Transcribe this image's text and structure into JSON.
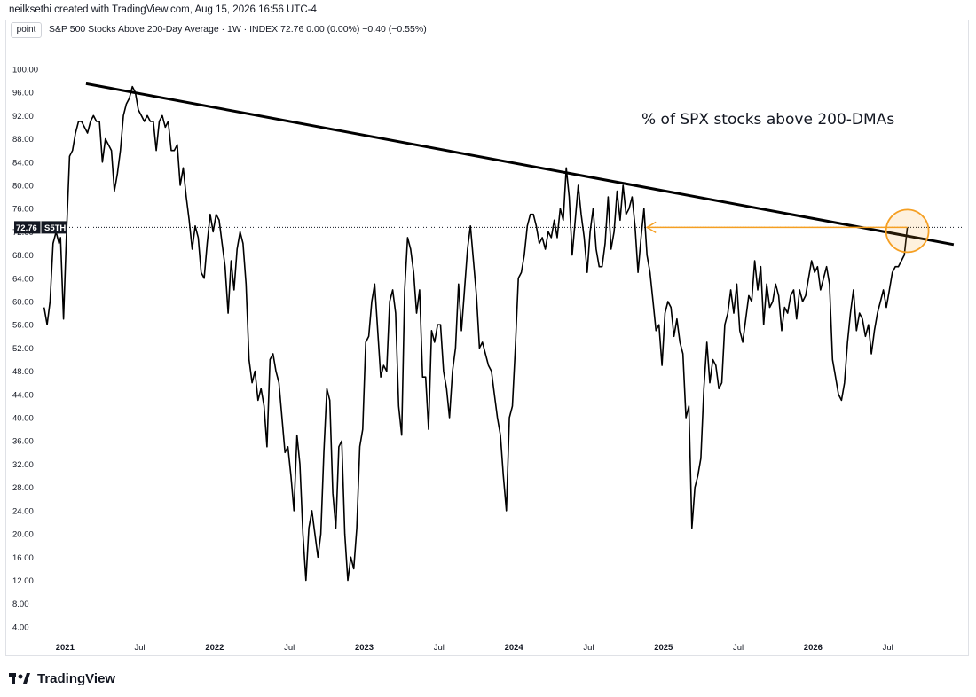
{
  "header": {
    "attribution": "neilksethi created with TradingView.com, Aug 15, 2026 16:56 UTC-4",
    "mode_button": "point",
    "legend": "S&P 500 Stocks Above 200-Day Average · 1W · INDEX  72.76  0.00 (0.00%)  −0.40 (−0.55%)"
  },
  "footer": {
    "brand": "TradingView"
  },
  "chart_data": {
    "type": "line",
    "annotation": "% of SPX stocks above 200-DMAs",
    "last_value_label": "72.76",
    "symbol_label": "S5TH",
    "y_ticks": [
      "100.00",
      "96.00",
      "92.00",
      "88.00",
      "84.00",
      "80.00",
      "76.00",
      "72.00",
      "68.00",
      "64.00",
      "60.00",
      "56.00",
      "52.00",
      "48.00",
      "44.00",
      "40.00",
      "36.00",
      "32.00",
      "28.00",
      "24.00",
      "20.00",
      "16.00",
      "12.00",
      "8.00",
      "4.00"
    ],
    "x_ticks": [
      {
        "label": "2021",
        "x": 2021.0
      },
      {
        "label": "Jul",
        "x": 2021.5
      },
      {
        "label": "2022",
        "x": 2022.0
      },
      {
        "label": "Jul",
        "x": 2022.5
      },
      {
        "label": "2023",
        "x": 2023.0
      },
      {
        "label": "Jul",
        "x": 2023.5
      },
      {
        "label": "2024",
        "x": 2024.0
      },
      {
        "label": "Jul",
        "x": 2024.5
      },
      {
        "label": "2025",
        "x": 2025.0
      },
      {
        "label": "Jul",
        "x": 2025.5
      },
      {
        "label": "2026",
        "x": 2026.0
      },
      {
        "label": "Jul",
        "x": 2026.5
      }
    ],
    "xlim": [
      2020.85,
      2027.0
    ],
    "ylim": [
      2.0,
      103.5
    ],
    "trendline": [
      {
        "x": 2021.14,
        "y": 97.5
      },
      {
        "x": 2026.94,
        "y": 69.8
      }
    ],
    "last_value": 72.76,
    "series": [
      {
        "values": [
          [
            2020.86,
            59
          ],
          [
            2020.88,
            56
          ],
          [
            2020.9,
            60
          ],
          [
            2020.92,
            70
          ],
          [
            2020.94,
            72
          ],
          [
            2020.96,
            70
          ],
          [
            2020.97,
            71
          ],
          [
            2020.99,
            57
          ],
          [
            2021.01,
            72
          ],
          [
            2021.03,
            85
          ],
          [
            2021.05,
            86
          ],
          [
            2021.07,
            89
          ],
          [
            2021.09,
            91
          ],
          [
            2021.11,
            91
          ],
          [
            2021.13,
            90
          ],
          [
            2021.15,
            89
          ],
          [
            2021.17,
            91
          ],
          [
            2021.19,
            92
          ],
          [
            2021.21,
            91
          ],
          [
            2021.23,
            91
          ],
          [
            2021.25,
            84
          ],
          [
            2021.27,
            88
          ],
          [
            2021.29,
            87
          ],
          [
            2021.31,
            86
          ],
          [
            2021.33,
            79
          ],
          [
            2021.35,
            82
          ],
          [
            2021.37,
            86
          ],
          [
            2021.39,
            92
          ],
          [
            2021.41,
            94
          ],
          [
            2021.43,
            95
          ],
          [
            2021.45,
            97
          ],
          [
            2021.47,
            96
          ],
          [
            2021.49,
            93
          ],
          [
            2021.51,
            92
          ],
          [
            2021.53,
            91
          ],
          [
            2021.55,
            92
          ],
          [
            2021.57,
            91
          ],
          [
            2021.59,
            91
          ],
          [
            2021.61,
            86
          ],
          [
            2021.63,
            91
          ],
          [
            2021.65,
            92
          ],
          [
            2021.67,
            90
          ],
          [
            2021.69,
            91
          ],
          [
            2021.71,
            86
          ],
          [
            2021.73,
            86
          ],
          [
            2021.75,
            87
          ],
          [
            2021.77,
            80
          ],
          [
            2021.79,
            83
          ],
          [
            2021.81,
            78
          ],
          [
            2021.83,
            74
          ],
          [
            2021.85,
            69
          ],
          [
            2021.87,
            73
          ],
          [
            2021.89,
            71
          ],
          [
            2021.91,
            65
          ],
          [
            2021.93,
            64
          ],
          [
            2021.95,
            70
          ],
          [
            2021.97,
            75
          ],
          [
            2021.99,
            72
          ],
          [
            2022.01,
            75
          ],
          [
            2022.03,
            74
          ],
          [
            2022.05,
            70
          ],
          [
            2022.07,
            66
          ],
          [
            2022.09,
            58
          ],
          [
            2022.11,
            67
          ],
          [
            2022.13,
            62
          ],
          [
            2022.15,
            69
          ],
          [
            2022.17,
            72
          ],
          [
            2022.19,
            70
          ],
          [
            2022.21,
            63
          ],
          [
            2022.23,
            50
          ],
          [
            2022.25,
            46
          ],
          [
            2022.27,
            48
          ],
          [
            2022.29,
            43
          ],
          [
            2022.31,
            45
          ],
          [
            2022.33,
            42
          ],
          [
            2022.35,
            35
          ],
          [
            2022.37,
            50
          ],
          [
            2022.39,
            51
          ],
          [
            2022.41,
            48
          ],
          [
            2022.43,
            46
          ],
          [
            2022.45,
            40
          ],
          [
            2022.47,
            34
          ],
          [
            2022.49,
            35
          ],
          [
            2022.51,
            30
          ],
          [
            2022.53,
            24
          ],
          [
            2022.55,
            37
          ],
          [
            2022.57,
            32
          ],
          [
            2022.59,
            20
          ],
          [
            2022.61,
            12
          ],
          [
            2022.63,
            21
          ],
          [
            2022.65,
            24
          ],
          [
            2022.67,
            20
          ],
          [
            2022.69,
            16
          ],
          [
            2022.71,
            20
          ],
          [
            2022.73,
            34
          ],
          [
            2022.75,
            45
          ],
          [
            2022.77,
            43
          ],
          [
            2022.79,
            27
          ],
          [
            2022.81,
            21
          ],
          [
            2022.83,
            35
          ],
          [
            2022.85,
            36
          ],
          [
            2022.87,
            20
          ],
          [
            2022.89,
            12
          ],
          [
            2022.91,
            16
          ],
          [
            2022.93,
            14
          ],
          [
            2022.95,
            21
          ],
          [
            2022.97,
            35
          ],
          [
            2022.99,
            38
          ],
          [
            2023.01,
            53
          ],
          [
            2023.03,
            54
          ],
          [
            2023.05,
            60
          ],
          [
            2023.07,
            63
          ],
          [
            2023.09,
            55
          ],
          [
            2023.11,
            47
          ],
          [
            2023.13,
            49
          ],
          [
            2023.15,
            48
          ],
          [
            2023.17,
            60
          ],
          [
            2023.19,
            62
          ],
          [
            2023.21,
            58
          ],
          [
            2023.23,
            42
          ],
          [
            2023.25,
            37
          ],
          [
            2023.27,
            62
          ],
          [
            2023.29,
            71
          ],
          [
            2023.31,
            69
          ],
          [
            2023.33,
            65
          ],
          [
            2023.35,
            58
          ],
          [
            2023.37,
            62
          ],
          [
            2023.39,
            47
          ],
          [
            2023.41,
            47
          ],
          [
            2023.43,
            38
          ],
          [
            2023.45,
            55
          ],
          [
            2023.47,
            53
          ],
          [
            2023.49,
            56
          ],
          [
            2023.51,
            56
          ],
          [
            2023.53,
            48
          ],
          [
            2023.55,
            45
          ],
          [
            2023.57,
            40
          ],
          [
            2023.59,
            48
          ],
          [
            2023.61,
            52
          ],
          [
            2023.63,
            63
          ],
          [
            2023.65,
            55
          ],
          [
            2023.67,
            62
          ],
          [
            2023.69,
            69
          ],
          [
            2023.71,
            73
          ],
          [
            2023.73,
            67
          ],
          [
            2023.75,
            61
          ],
          [
            2023.77,
            52
          ],
          [
            2023.79,
            53
          ],
          [
            2023.81,
            51
          ],
          [
            2023.83,
            49
          ],
          [
            2023.85,
            48
          ],
          [
            2023.87,
            44
          ],
          [
            2023.89,
            40
          ],
          [
            2023.91,
            37
          ],
          [
            2023.93,
            30
          ],
          [
            2023.95,
            24
          ],
          [
            2023.97,
            40
          ],
          [
            2023.99,
            42
          ],
          [
            2024.01,
            52
          ],
          [
            2024.03,
            64
          ],
          [
            2024.05,
            65
          ],
          [
            2024.07,
            68
          ],
          [
            2024.09,
            73
          ],
          [
            2024.11,
            75
          ],
          [
            2024.13,
            75
          ],
          [
            2024.15,
            73
          ],
          [
            2024.17,
            70
          ],
          [
            2024.19,
            71
          ],
          [
            2024.21,
            69
          ],
          [
            2024.23,
            72
          ],
          [
            2024.25,
            71
          ],
          [
            2024.27,
            74
          ],
          [
            2024.29,
            71
          ],
          [
            2024.31,
            76
          ],
          [
            2024.33,
            74
          ],
          [
            2024.35,
            83
          ],
          [
            2024.37,
            78
          ],
          [
            2024.39,
            68
          ],
          [
            2024.41,
            74
          ],
          [
            2024.43,
            80
          ],
          [
            2024.45,
            75
          ],
          [
            2024.47,
            71
          ],
          [
            2024.49,
            65
          ],
          [
            2024.51,
            72
          ],
          [
            2024.53,
            76
          ],
          [
            2024.55,
            69
          ],
          [
            2024.57,
            66
          ],
          [
            2024.59,
            66
          ],
          [
            2024.61,
            70
          ],
          [
            2024.63,
            78
          ],
          [
            2024.65,
            69
          ],
          [
            2024.67,
            72
          ],
          [
            2024.69,
            79
          ],
          [
            2024.71,
            74
          ],
          [
            2024.73,
            80
          ],
          [
            2024.75,
            75
          ],
          [
            2024.77,
            76
          ],
          [
            2024.79,
            78
          ],
          [
            2024.81,
            73
          ],
          [
            2024.83,
            65
          ],
          [
            2024.85,
            71
          ],
          [
            2024.87,
            76
          ],
          [
            2024.89,
            68
          ],
          [
            2024.91,
            65
          ],
          [
            2024.93,
            60
          ],
          [
            2024.95,
            55
          ],
          [
            2024.97,
            56
          ],
          [
            2024.99,
            49
          ],
          [
            2025.01,
            58
          ],
          [
            2025.03,
            60
          ],
          [
            2025.05,
            59
          ],
          [
            2025.07,
            54
          ],
          [
            2025.09,
            57
          ],
          [
            2025.11,
            53
          ],
          [
            2025.13,
            51
          ],
          [
            2025.15,
            40
          ],
          [
            2025.17,
            42
          ],
          [
            2025.19,
            21
          ],
          [
            2025.21,
            28
          ],
          [
            2025.23,
            30
          ],
          [
            2025.25,
            33
          ],
          [
            2025.27,
            45
          ],
          [
            2025.29,
            53
          ],
          [
            2025.31,
            46
          ],
          [
            2025.33,
            50
          ],
          [
            2025.35,
            49
          ],
          [
            2025.37,
            45
          ],
          [
            2025.39,
            46
          ],
          [
            2025.41,
            56
          ],
          [
            2025.43,
            58
          ],
          [
            2025.45,
            62
          ],
          [
            2025.47,
            58
          ],
          [
            2025.49,
            63
          ],
          [
            2025.51,
            55
          ],
          [
            2025.53,
            53
          ],
          [
            2025.55,
            57
          ],
          [
            2025.57,
            61
          ],
          [
            2025.59,
            60
          ],
          [
            2025.61,
            67
          ],
          [
            2025.63,
            62
          ],
          [
            2025.65,
            66
          ],
          [
            2025.67,
            56
          ],
          [
            2025.69,
            63
          ],
          [
            2025.71,
            59
          ],
          [
            2025.73,
            60
          ],
          [
            2025.75,
            63
          ],
          [
            2025.77,
            61
          ],
          [
            2025.79,
            55
          ],
          [
            2025.81,
            59
          ],
          [
            2025.83,
            58
          ],
          [
            2025.85,
            61
          ],
          [
            2025.87,
            62
          ],
          [
            2025.89,
            57
          ],
          [
            2025.91,
            62
          ],
          [
            2025.93,
            60
          ],
          [
            2025.95,
            61
          ],
          [
            2025.97,
            64
          ],
          [
            2025.99,
            67
          ],
          [
            2026.01,
            65
          ],
          [
            2026.03,
            66
          ],
          [
            2026.05,
            62
          ],
          [
            2026.07,
            64
          ],
          [
            2026.09,
            66
          ],
          [
            2026.11,
            63
          ],
          [
            2026.13,
            50
          ],
          [
            2026.15,
            47
          ],
          [
            2026.17,
            44
          ],
          [
            2026.19,
            43
          ],
          [
            2026.21,
            46
          ],
          [
            2026.23,
            53
          ],
          [
            2026.25,
            58
          ],
          [
            2026.27,
            62
          ],
          [
            2026.29,
            55
          ],
          [
            2026.31,
            58
          ],
          [
            2026.33,
            57
          ],
          [
            2026.35,
            54
          ],
          [
            2026.37,
            56
          ],
          [
            2026.39,
            51
          ],
          [
            2026.41,
            55
          ],
          [
            2026.43,
            58
          ],
          [
            2026.45,
            60
          ],
          [
            2026.47,
            62
          ],
          [
            2026.49,
            59
          ],
          [
            2026.51,
            62
          ],
          [
            2026.53,
            65
          ],
          [
            2026.55,
            66
          ],
          [
            2026.57,
            66
          ],
          [
            2026.59,
            67
          ],
          [
            2026.61,
            68
          ],
          [
            2026.63,
            72.76
          ]
        ]
      }
    ],
    "colors": {
      "line": "#000000",
      "trend": "#000000",
      "arrow": "#f59f22",
      "badge": "#131722",
      "axis_text": "#131722"
    }
  }
}
